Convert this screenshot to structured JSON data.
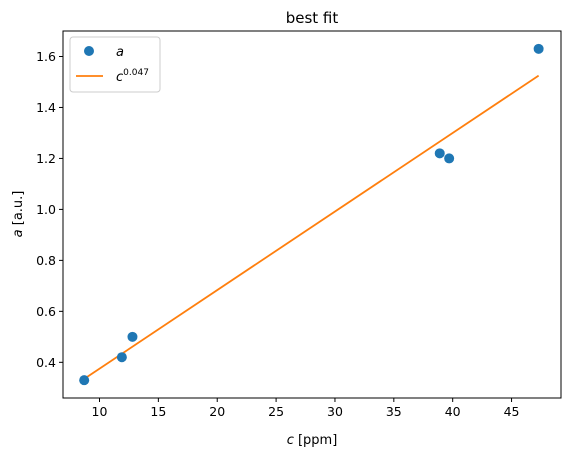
{
  "chart_data": {
    "type": "scatter",
    "title": "best fit",
    "xlabel": {
      "symbol": "c",
      "unit": " [ppm]"
    },
    "ylabel": {
      "symbol": "a",
      "unit": " [a.u.]"
    },
    "xlim": [
      6.9,
      49.2
    ],
    "ylim": [
      0.26,
      1.7
    ],
    "xticks": [
      10,
      15,
      20,
      25,
      30,
      35,
      40,
      45
    ],
    "yticks": [
      0.4,
      0.6,
      0.8,
      1.0,
      1.2,
      1.4,
      1.6
    ],
    "xtick_labels": [
      "10",
      "15",
      "20",
      "25",
      "30",
      "35",
      "40",
      "45"
    ],
    "ytick_labels": [
      "0.4",
      "0.6",
      "0.8",
      "1.0",
      "1.2",
      "1.4",
      "1.6"
    ],
    "grid": false,
    "legend_position": "upper-left",
    "series": [
      {
        "name": "a",
        "kind": "scatter",
        "color": "#1f77b4",
        "points": [
          {
            "x": 8.7,
            "y": 0.33
          },
          {
            "x": 11.9,
            "y": 0.42
          },
          {
            "x": 12.8,
            "y": 0.5
          },
          {
            "x": 38.9,
            "y": 1.22
          },
          {
            "x": 39.7,
            "y": 1.2
          },
          {
            "x": 47.3,
            "y": 1.63
          }
        ]
      },
      {
        "name": "c^0.047",
        "name_base": "c",
        "name_exponent": "0.047",
        "kind": "line",
        "color": "#ff7f0e",
        "points": [
          {
            "x": 8.7,
            "y": 0.335
          },
          {
            "x": 47.3,
            "y": 1.525
          }
        ]
      }
    ]
  }
}
